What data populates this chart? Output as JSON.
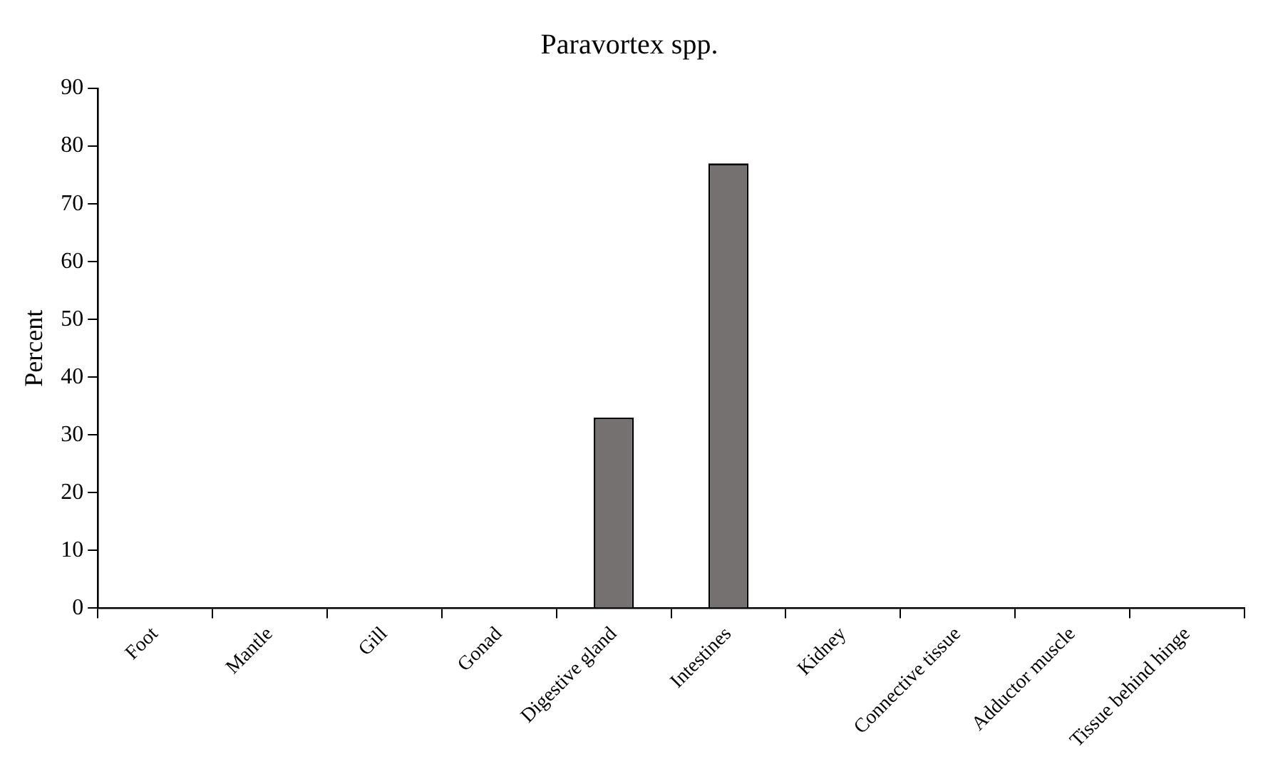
{
  "chart_data": {
    "type": "bar",
    "title": "Paravortex spp.",
    "ylabel": "Percent",
    "categories": [
      "Foot",
      "Mantle",
      "Gill",
      "Gonad",
      "Digestive gland",
      "Intestines",
      "Kidney",
      "Connective tissue",
      "Adductor muscle",
      "Tissue behind hinge"
    ],
    "values": [
      0,
      0,
      0,
      0,
      33,
      77,
      0,
      0,
      0,
      0
    ],
    "color": "#767171",
    "ylim": [
      0,
      90
    ],
    "yticks": [
      0,
      10,
      20,
      30,
      40,
      50,
      60,
      70,
      80,
      90
    ],
    "grid": false,
    "legend": false
  }
}
